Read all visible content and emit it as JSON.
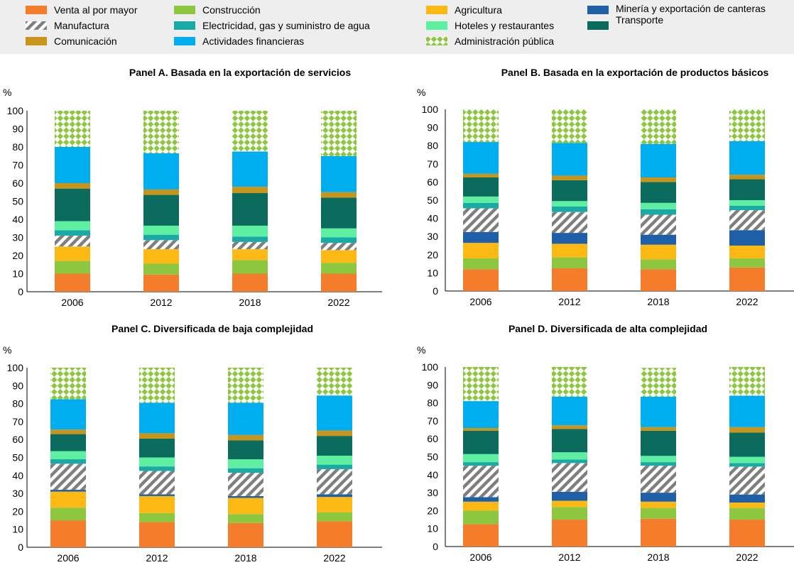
{
  "segment_styles": {
    "Venta al por mayor": {
      "color": "#f47c2b"
    },
    "Construcción": {
      "color": "#8dc63f"
    },
    "Agricultura": {
      "color": "#fdb913"
    },
    "Minería y exportación de canteras": {
      "color": "#1f5fa8"
    },
    "Manufactura": {
      "color": "#7f7f7f",
      "pattern": "diag"
    },
    "Electricidad, gas y suministro de agua": {
      "color": "#1aaaa6"
    },
    "Hoteles y restaurantes": {
      "color": "#5ef0a0"
    },
    "Transporte": {
      "color": "#0b6b5c"
    },
    "Comunicación": {
      "color": "#c8941a"
    },
    "Actividades financieras": {
      "color": "#00aeef"
    },
    "Administración pública": {
      "color": "#8dc63f",
      "pattern": "check"
    }
  },
  "legend": {
    "items": [
      {
        "label": "Venta al por mayor"
      },
      {
        "label": "Construcción"
      },
      {
        "label": "Agricultura"
      },
      {
        "label": "Minería y exportación de canteras"
      },
      {
        "label": "Manufactura"
      },
      {
        "label": "Electricidad, gas y suministro de agua"
      },
      {
        "label": "Hoteles y restaurantes"
      },
      {
        "label": "Transporte"
      },
      {
        "label": "Comunicación"
      },
      {
        "label": "Actividades financieras"
      },
      {
        "label": "Administración pública"
      }
    ]
  },
  "chart_data": [
    {
      "type": "bar",
      "stacked": true,
      "title": "Panel A. Basada en la exportación de servicios",
      "ylabel": "%",
      "ylim": [
        0,
        100
      ],
      "yticks": [
        0,
        10,
        20,
        30,
        40,
        50,
        60,
        70,
        80,
        90,
        100
      ],
      "categories": [
        "2006",
        "2012",
        "2018",
        "2022"
      ],
      "series": [
        {
          "name": "Venta al por mayor",
          "values": [
            10,
            9.5,
            10,
            10
          ]
        },
        {
          "name": "Construcción",
          "values": [
            7,
            6,
            7.5,
            6
          ]
        },
        {
          "name": "Agricultura",
          "values": [
            8,
            8,
            6,
            7
          ]
        },
        {
          "name": "Minería y exportación de canteras",
          "values": [
            0,
            0,
            0,
            0
          ]
        },
        {
          "name": "Manufactura",
          "values": [
            6,
            5,
            4,
            4
          ]
        },
        {
          "name": "Electricidad, gas y suministro de agua",
          "values": [
            3,
            3,
            3,
            3
          ]
        },
        {
          "name": "Hoteles y restaurantes",
          "values": [
            5,
            5,
            6,
            5
          ]
        },
        {
          "name": "Transporte",
          "values": [
            18,
            17,
            18,
            17
          ]
        },
        {
          "name": "Comunicación",
          "values": [
            3,
            3,
            3.5,
            3
          ]
        },
        {
          "name": "Actividades financieras",
          "values": [
            20,
            20,
            19.5,
            20
          ]
        },
        {
          "name": "Administración pública",
          "values": [
            20,
            23.5,
            22.5,
            25
          ]
        }
      ]
    },
    {
      "type": "bar",
      "stacked": true,
      "title": "Panel B. Basada en la exportación de productos básicos",
      "ylabel": "%",
      "ylim": [
        0,
        100
      ],
      "yticks": [
        0,
        10,
        20,
        30,
        40,
        50,
        60,
        70,
        80,
        90,
        100
      ],
      "categories": [
        "2006",
        "2012",
        "2018",
        "2022"
      ],
      "series": [
        {
          "name": "Venta al por mayor",
          "values": [
            12,
            12.5,
            12,
            13
          ]
        },
        {
          "name": "Construcción",
          "values": [
            6,
            6,
            5.5,
            5
          ]
        },
        {
          "name": "Agricultura",
          "values": [
            8.5,
            7.5,
            8,
            7
          ]
        },
        {
          "name": "Minería y exportación de canteras",
          "values": [
            6,
            6,
            5.5,
            8.5
          ]
        },
        {
          "name": "Manufactura",
          "values": [
            13,
            11.5,
            11,
            11
          ]
        },
        {
          "name": "Electricidad, gas y suministro de agua",
          "values": [
            3,
            3,
            3,
            2.5
          ]
        },
        {
          "name": "Hoteles y restaurantes",
          "values": [
            3.5,
            3,
            3.5,
            3
          ]
        },
        {
          "name": "Transporte",
          "values": [
            10.5,
            11.5,
            11.5,
            11.5
          ]
        },
        {
          "name": "Comunicación",
          "values": [
            2,
            2.5,
            2.5,
            2.5
          ]
        },
        {
          "name": "Actividades financieras",
          "values": [
            17.5,
            18,
            18.5,
            18.5
          ]
        },
        {
          "name": "Administración pública",
          "values": [
            18,
            18.5,
            19,
            17.5
          ]
        }
      ]
    },
    {
      "type": "bar",
      "stacked": true,
      "title": "Panel C. Diversificada de baja complejidad",
      "ylabel": "%",
      "ylim": [
        0,
        100
      ],
      "yticks": [
        0,
        10,
        20,
        30,
        40,
        50,
        60,
        70,
        80,
        90,
        100
      ],
      "categories": [
        "2006",
        "2012",
        "2018",
        "2022"
      ],
      "series": [
        {
          "name": "Venta al por mayor",
          "values": [
            15,
            14,
            13.5,
            14.5
          ]
        },
        {
          "name": "Construcción",
          "values": [
            7,
            5,
            5,
            5
          ]
        },
        {
          "name": "Agricultura",
          "values": [
            9,
            9.5,
            9,
            8.5
          ]
        },
        {
          "name": "Minería y exportación de canteras",
          "values": [
            1,
            1,
            1,
            1.5
          ]
        },
        {
          "name": "Manufactura",
          "values": [
            14.5,
            13,
            13,
            14
          ]
        },
        {
          "name": "Electricidad, gas y suministro de agua",
          "values": [
            2.5,
            2.5,
            2.5,
            2.5
          ]
        },
        {
          "name": "Hoteles y restaurantes",
          "values": [
            4.5,
            5,
            5,
            5
          ]
        },
        {
          "name": "Transporte",
          "values": [
            9.5,
            10.5,
            10.5,
            11
          ]
        },
        {
          "name": "Comunicación",
          "values": [
            2.5,
            3,
            3,
            3
          ]
        },
        {
          "name": "Actividades financieras",
          "values": [
            17,
            17,
            18,
            19.5
          ]
        },
        {
          "name": "Administración pública",
          "values": [
            17.5,
            19.5,
            19.5,
            15.5
          ]
        }
      ]
    },
    {
      "type": "bar",
      "stacked": true,
      "title": "Panel D. Diversificada de alta complejidad",
      "ylabel": "%",
      "ylim": [
        0,
        100
      ],
      "yticks": [
        0,
        10,
        20,
        30,
        40,
        50,
        60,
        70,
        80,
        90,
        100
      ],
      "categories": [
        "2006",
        "2012",
        "2018",
        "2022"
      ],
      "series": [
        {
          "name": "Venta al por mayor",
          "values": [
            12.5,
            15,
            15.5,
            15
          ]
        },
        {
          "name": "Construcción",
          "values": [
            7.5,
            7,
            6,
            6.5
          ]
        },
        {
          "name": "Agricultura",
          "values": [
            5,
            3.5,
            3.5,
            3
          ]
        },
        {
          "name": "Minería y exportación de canteras",
          "values": [
            2.5,
            5,
            5,
            4.5
          ]
        },
        {
          "name": "Manufactura",
          "values": [
            17.5,
            16,
            15,
            15.5
          ]
        },
        {
          "name": "Electricidad, gas y suministro de agua",
          "values": [
            2,
            2,
            2,
            2
          ]
        },
        {
          "name": "Hoteles y restaurantes",
          "values": [
            4.5,
            4,
            3.5,
            3.5
          ]
        },
        {
          "name": "Transporte",
          "values": [
            13,
            13,
            14,
            13.5
          ]
        },
        {
          "name": "Comunicación",
          "values": [
            1.5,
            2,
            2,
            3
          ]
        },
        {
          "name": "Actividades financieras",
          "values": [
            15,
            16,
            17,
            17.5
          ]
        },
        {
          "name": "Administración pública",
          "values": [
            19,
            16.5,
            16,
            16
          ]
        }
      ]
    }
  ]
}
